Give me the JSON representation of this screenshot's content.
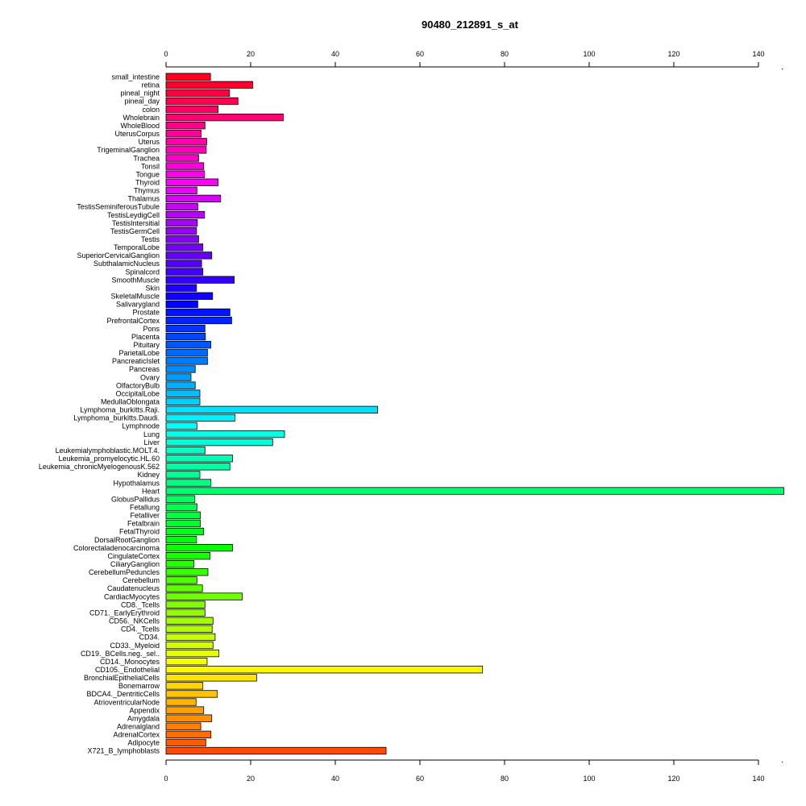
{
  "chart_data": {
    "type": "bar",
    "orientation": "horizontal",
    "title": "90480_212891_s_at",
    "xlabel": "",
    "ylabel": "",
    "xlim": [
      0,
      146
    ],
    "xticks": [
      0,
      20,
      40,
      60,
      80,
      100,
      120,
      140
    ],
    "axes": [
      "top",
      "bottom"
    ],
    "grid": false,
    "categories": [
      "small_intestine",
      "retina",
      "pineal_night",
      "pineal_day",
      "colon",
      "Wholebrain",
      "WholeBlood",
      "UterusCorpus",
      "Uterus",
      "TrigeminalGanglion",
      "Trachea",
      "Tonsil",
      "Tongue",
      "Thyroid",
      "Thymus",
      "Thalamus",
      "TestisSeminiferousTubule",
      "TestisLeydigCell",
      "TestisIntersitial",
      "TestisGermCell",
      "Testis",
      "TemporalLobe",
      "SuperiorCervicalGanglion",
      "SubthalamicNucleus",
      "Spinalcord",
      "SmoothMuscle",
      "Skin",
      "SkeletalMuscle",
      "Salivarygland",
      "Prostate",
      "PrefrontalCortex",
      "Pons",
      "Placenta",
      "Pituitary",
      "ParietalLobe",
      "PancreaticIslet",
      "Pancreas",
      "Ovary",
      "OlfactoryBulb",
      "OccipitalLobe",
      "MedullaOblongata",
      "Lymphoma_burkitts.Raji.",
      "Lymphoma_burkitts.Daudi.",
      "Lymphnode",
      "Lung",
      "Liver",
      "Leukemialymphoblastic.MOLT.4.",
      "Leukemia_promyelocytic.HL.60",
      "Leukemia_chronicMyelogenousK.562",
      "Kidney",
      "Hypothalamus",
      "Heart",
      "GlobusPallidus",
      "Fetallung",
      "Fetalliver",
      "Fetalbrain",
      "FetalThyroid",
      "DorsalRootGanglion",
      "Colorectaladenocarcinoma",
      "CingulateCortex",
      "CiliaryGanglion",
      "CerebellumPeduncles",
      "Cerebellum",
      "Caudatenucleus",
      "CardiacMyocytes",
      "CD8._Tcells",
      "CD71._EarlyErythroid",
      "CD56._NKCells",
      "CD4._Tcells",
      "CD34.",
      "CD33._Myeloid",
      "CD19._BCells.neg._sel..",
      "CD14._Monocytes",
      "CD105._Endothelial",
      "BronchialEpithelialCells",
      "Bonemarrow",
      "BDCA4._DentriticCells",
      "AtrioventricularNode",
      "Appendix",
      "Amygdala",
      "Adrenalgland",
      "AdrenalCortex",
      "Adipocyte",
      "X721_B_lymphoblasts"
    ],
    "values": [
      10.5,
      20.5,
      15,
      17,
      12.3,
      27.7,
      9.2,
      8.3,
      9.6,
      9.5,
      7.7,
      8.9,
      9.1,
      12.3,
      7.3,
      12.9,
      7.5,
      9.1,
      7.4,
      7.2,
      7.7,
      8.7,
      10.8,
      8.4,
      8.7,
      16.1,
      7.2,
      11.0,
      7.5,
      15.1,
      15.5,
      9.2,
      9.3,
      10.6,
      9.8,
      9.8,
      6.9,
      5.9,
      6.9,
      8.0,
      8.0,
      50.0,
      16.3,
      7.3,
      28.0,
      25.2,
      9.2,
      15.7,
      15.1,
      8.0,
      10.6,
      146,
      6.8,
      7.3,
      8.1,
      8.1,
      8.9,
      7.2,
      15.7,
      10.4,
      6.6,
      9.9,
      7.3,
      8.6,
      18.0,
      9.2,
      9.2,
      11.1,
      10.9,
      11.6,
      11.1,
      12.5,
      9.7,
      74.8,
      21.4,
      8.7,
      12.1,
      7.1,
      8.9,
      10.8,
      8.2,
      10.6,
      9.4,
      52.0
    ],
    "colors": [
      "#FF0020",
      "#FF0031",
      "#FF0042",
      "#FF0053",
      "#FF0064",
      "#FF0075",
      "#FF0087",
      "#FF0098",
      "#FF00A9",
      "#FF00BA",
      "#FF00CB",
      "#FF00DC",
      "#FF00ED",
      "#FF00FF",
      "#ED00FF",
      "#DC00FF",
      "#CB00FF",
      "#BA00FF",
      "#A900FF",
      "#9800FF",
      "#8700FF",
      "#7500FF",
      "#6400FF",
      "#5300FF",
      "#4200FF",
      "#3100FF",
      "#2000FF",
      "#0F00FF",
      "#0002FF",
      "#0013FF",
      "#0024FF",
      "#0035FF",
      "#0046FF",
      "#0058FF",
      "#0069FF",
      "#007AFF",
      "#008BFF",
      "#009CFF",
      "#00ADFF",
      "#00BEFF",
      "#00CFFF",
      "#00E0FF",
      "#00F1FF",
      "#00FFF8",
      "#00FFE7",
      "#00FFD6",
      "#00FFC5",
      "#00FFB4",
      "#00FFA3",
      "#00FF92",
      "#00FF81",
      "#00FF70",
      "#00FF5F",
      "#00FF4E",
      "#00FF3D",
      "#00FF2C",
      "#00FF1B",
      "#00FF0A",
      "#07FF00",
      "#18FF00",
      "#29FF00",
      "#3AFF00",
      "#4BFF00",
      "#5CFF00",
      "#6EFF00",
      "#7FFF00",
      "#90FF00",
      "#A1FF00",
      "#B2FF00",
      "#C3FF00",
      "#D4FF00",
      "#E5FF00",
      "#F6FF00",
      "#FFF600",
      "#FFE500",
      "#FFD400",
      "#FFC300",
      "#FFB200",
      "#FFA100",
      "#FF9000",
      "#FF7F00",
      "#FF6E00",
      "#FF5C00",
      "#FF4B00"
    ]
  }
}
